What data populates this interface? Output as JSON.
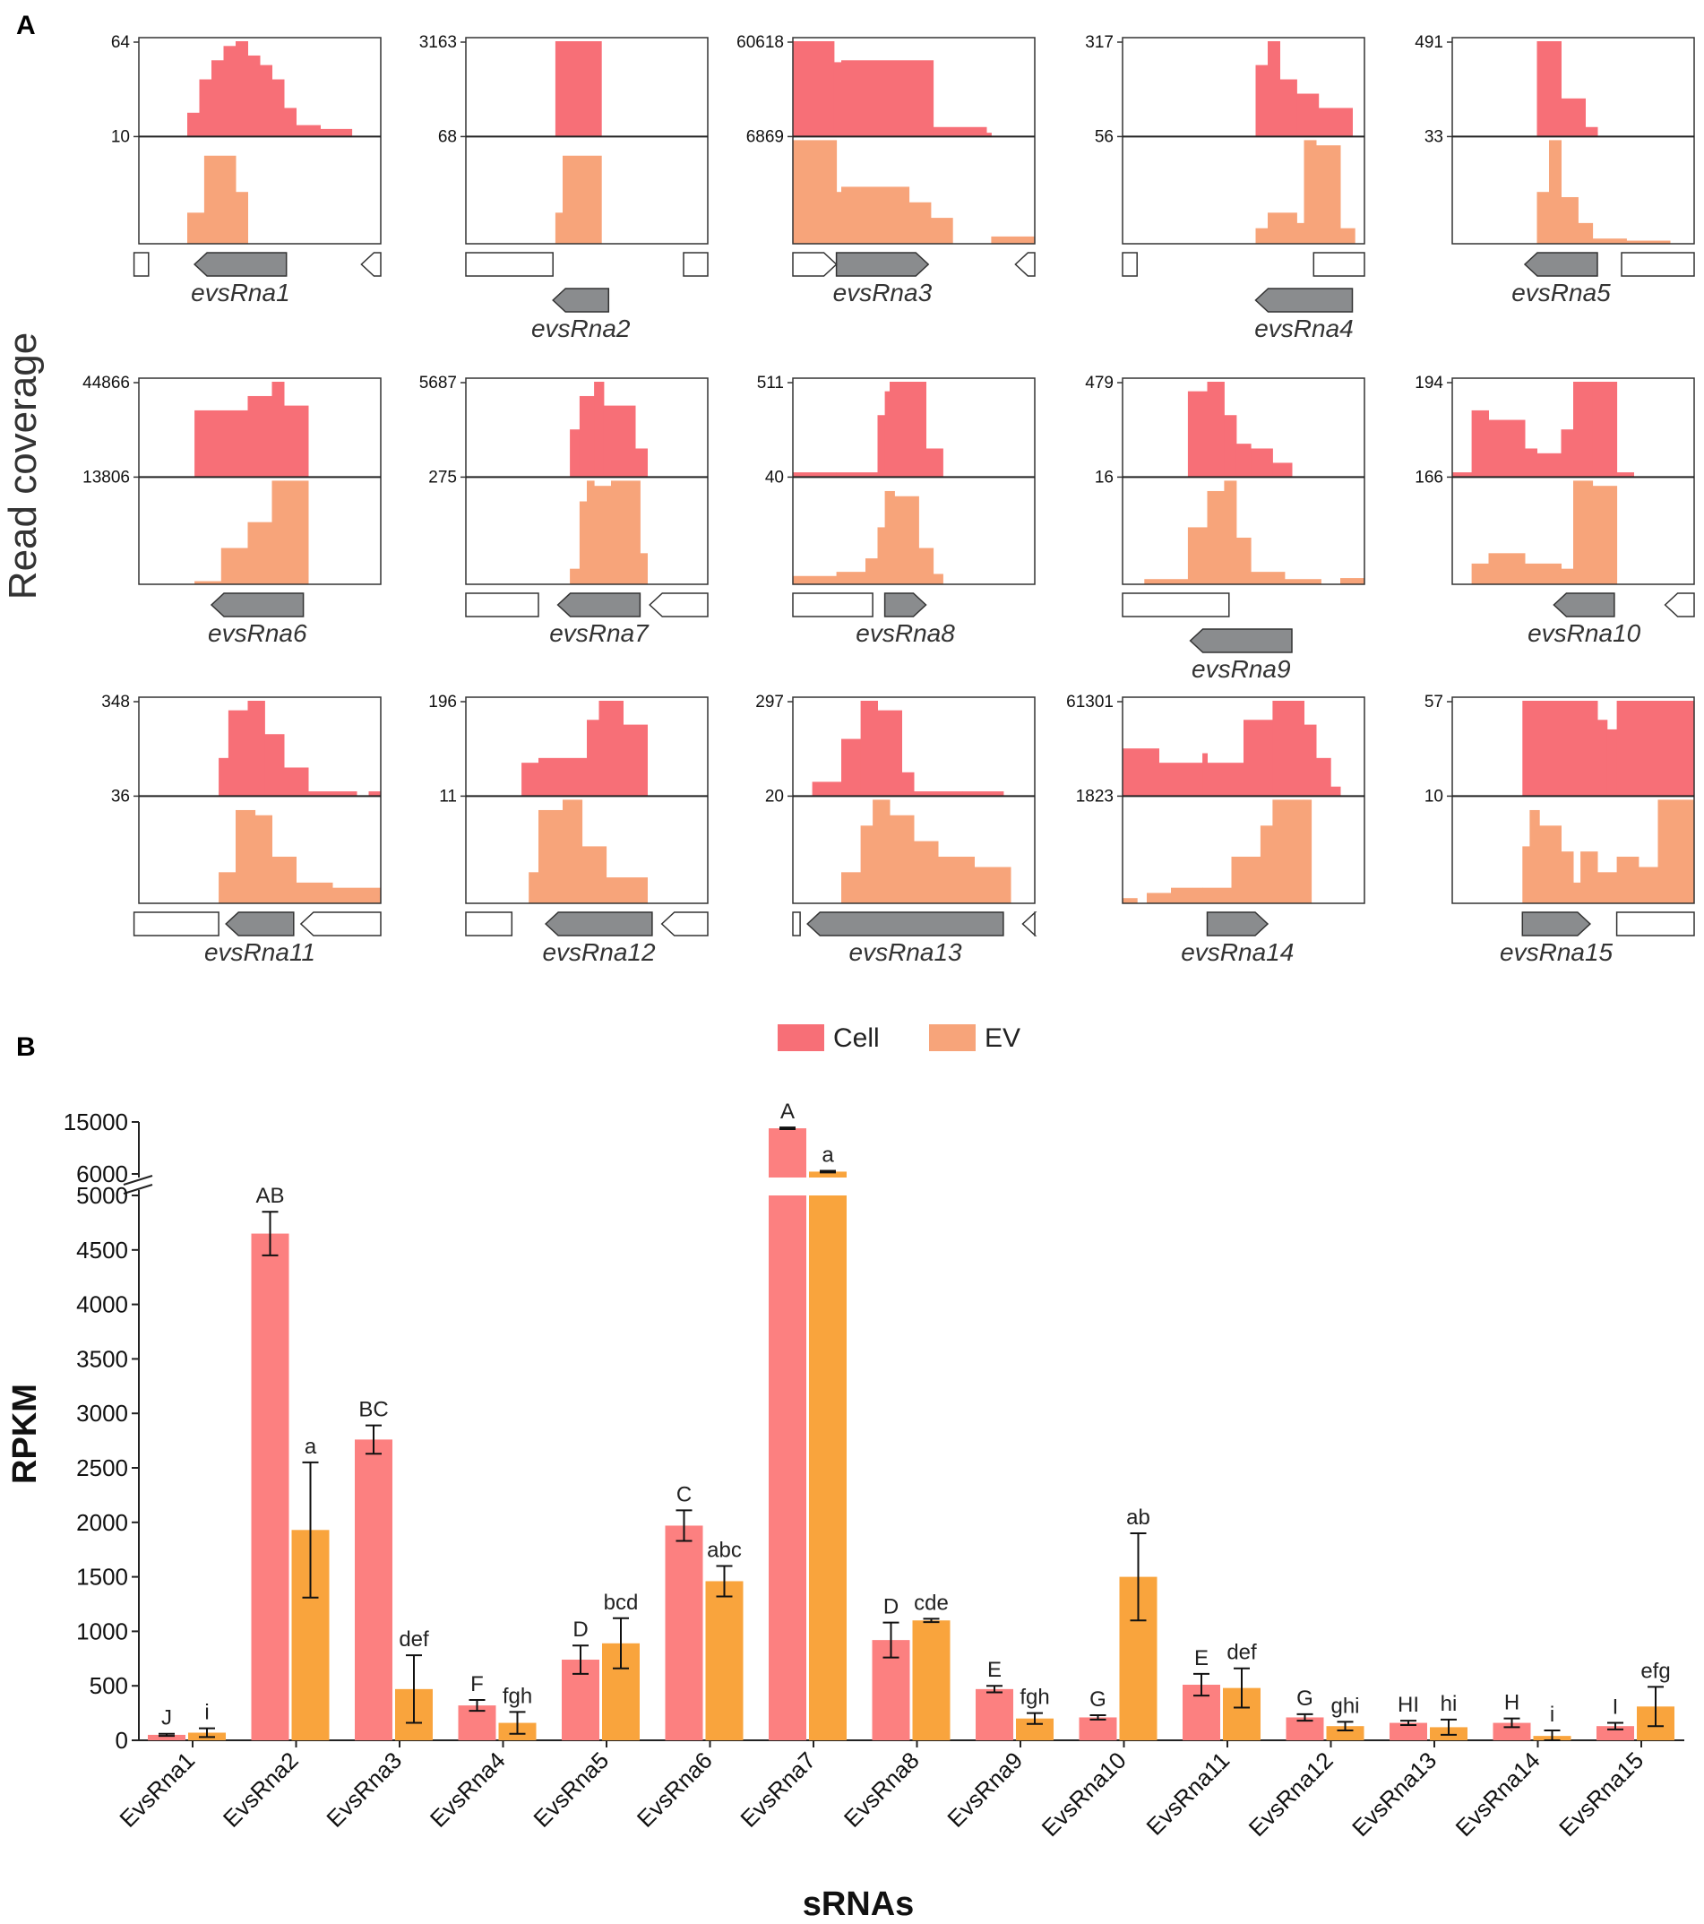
{
  "panel_labels": {
    "a": "A",
    "b": "B"
  },
  "colors": {
    "cell": "#f76f77",
    "ev": "#f7a47a",
    "cell_bar": "#fc8080",
    "ev_bar": "#f9a43d",
    "gene": "#8a8c8e"
  },
  "coverage": {
    "ylabel": "Read coverage",
    "panels": [
      {
        "name": "evsRna1",
        "top": "64",
        "bottom": "10"
      },
      {
        "name": "evsRna2",
        "top": "3163",
        "bottom": "68"
      },
      {
        "name": "evsRna3",
        "top": "60618",
        "bottom": "6869"
      },
      {
        "name": "evsRna4",
        "top": "317",
        "bottom": "56"
      },
      {
        "name": "evsRna5",
        "top": "491",
        "bottom": "33"
      },
      {
        "name": "evsRna6",
        "top": "44866",
        "bottom": "13806"
      },
      {
        "name": "evsRna7",
        "top": "5687",
        "bottom": "275"
      },
      {
        "name": "evsRna8",
        "top": "511",
        "bottom": "40"
      },
      {
        "name": "evsRna9",
        "top": "479",
        "bottom": "16"
      },
      {
        "name": "evsRna10",
        "top": "194",
        "bottom": "166"
      },
      {
        "name": "evsRna11",
        "top": "348",
        "bottom": "36"
      },
      {
        "name": "evsRna12",
        "top": "196",
        "bottom": "11"
      },
      {
        "name": "evsRna13",
        "top": "297",
        "bottom": "20"
      },
      {
        "name": "evsRna14",
        "top": "61301",
        "bottom": "1823"
      },
      {
        "name": "evsRna15",
        "top": "57",
        "bottom": "10"
      }
    ]
  },
  "chart_data": {
    "type": "bar",
    "title": "",
    "xlabel": "sRNAs",
    "ylabel": "RPKM",
    "categories": [
      "EvsRna1",
      "EvsRna2",
      "EvsRna3",
      "EvsRna4",
      "EvsRna5",
      "EvsRna6",
      "EvsRna7",
      "EvsRna8",
      "EvsRna9",
      "EvsRna10",
      "EvsRna11",
      "EvsRna12",
      "EvsRna13",
      "EvsRna14",
      "EvsRna15"
    ],
    "series": [
      {
        "name": "Cell",
        "values": [
          50,
          4650,
          2760,
          320,
          740,
          1970,
          13900,
          920,
          470,
          210,
          510,
          210,
          160,
          160,
          130
        ],
        "errors": [
          10,
          200,
          130,
          50,
          130,
          140,
          150,
          160,
          30,
          20,
          100,
          30,
          20,
          40,
          30
        ],
        "labels": [
          "J",
          "AB",
          "BC",
          "F",
          "D",
          "C",
          "A",
          "D",
          "E",
          "G",
          "E",
          "G",
          "HI",
          "H",
          "I"
        ]
      },
      {
        "name": "EV",
        "values": [
          70,
          1930,
          470,
          160,
          890,
          1460,
          6400,
          1100,
          200,
          1500,
          480,
          130,
          120,
          40,
          310
        ],
        "errors": [
          40,
          620,
          310,
          100,
          230,
          140,
          150,
          15,
          50,
          400,
          180,
          40,
          70,
          50,
          180
        ],
        "labels": [
          "i",
          "a",
          "def",
          "fgh",
          "bcd",
          "abc",
          "a",
          "cde",
          "fgh",
          "ab",
          "def",
          "ghi",
          "hi",
          "i",
          "efg"
        ]
      }
    ],
    "yticks_lower": [
      "0",
      "500",
      "1000",
      "1500",
      "2000",
      "2500",
      "3000",
      "3500",
      "4000",
      "4500",
      "5000"
    ],
    "yticks_upper": [
      "6000",
      "15000"
    ],
    "ylim_lower": [
      0,
      5000
    ],
    "ylim_upper": [
      6000,
      15000
    ],
    "legend": [
      "Cell",
      "EV"
    ],
    "legend_position": "top-center"
  }
}
